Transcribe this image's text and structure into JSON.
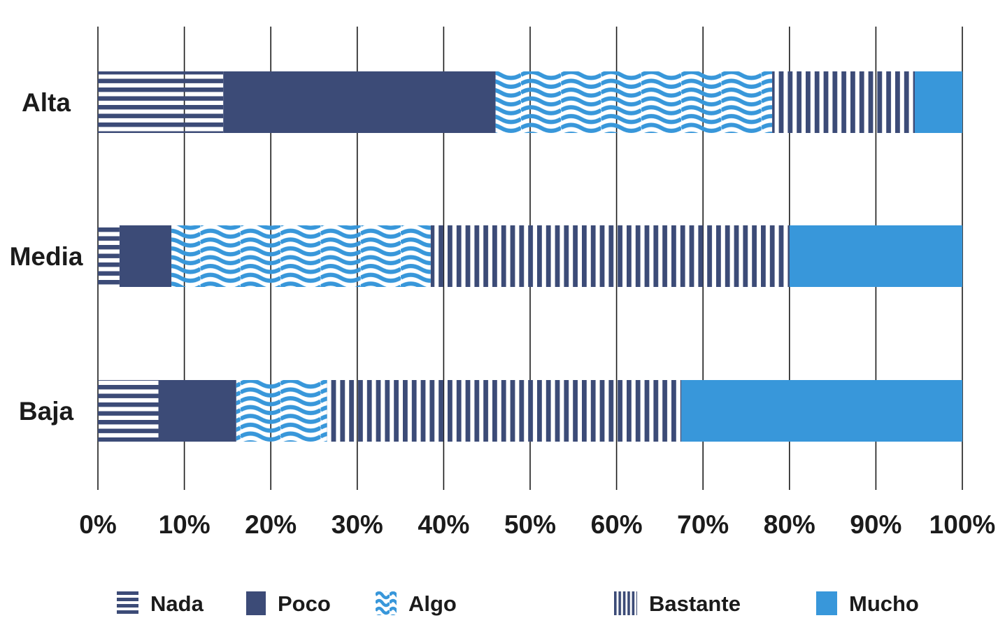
{
  "chart_data": {
    "type": "bar",
    "orientation": "horizontal",
    "stacked": true,
    "title": "",
    "xlabel": "",
    "ylabel": "",
    "xlim": [
      0,
      100
    ],
    "grid": "vertical-lines-on",
    "legend_position": "bottom",
    "categories": [
      "Alta",
      "Media",
      "Baja"
    ],
    "series": [
      {
        "name": "Nada",
        "pattern": "horizontal-stripes",
        "values": [
          14.5,
          2.5,
          7.0
        ]
      },
      {
        "name": "Poco",
        "pattern": "solid-navy",
        "values": [
          31.5,
          6.0,
          9.0
        ]
      },
      {
        "name": "Algo",
        "pattern": "waves",
        "values": [
          32.0,
          30.0,
          10.5
        ]
      },
      {
        "name": "Bastante",
        "pattern": "vertical-stripes",
        "values": [
          16.5,
          41.5,
          41.0
        ]
      },
      {
        "name": "Mucho",
        "pattern": "solid-lightblue",
        "values": [
          5.5,
          20.0,
          32.5
        ]
      }
    ],
    "x_ticks": [
      "0%",
      "10%",
      "20%",
      "30%",
      "40%",
      "50%",
      "60%",
      "70%",
      "80%",
      "90%",
      "100%"
    ],
    "colors": {
      "navy": "#3C4B77",
      "light_blue": "#3897DA",
      "grid_line": "#1a1a1a",
      "text": "#1b1b1b"
    }
  }
}
